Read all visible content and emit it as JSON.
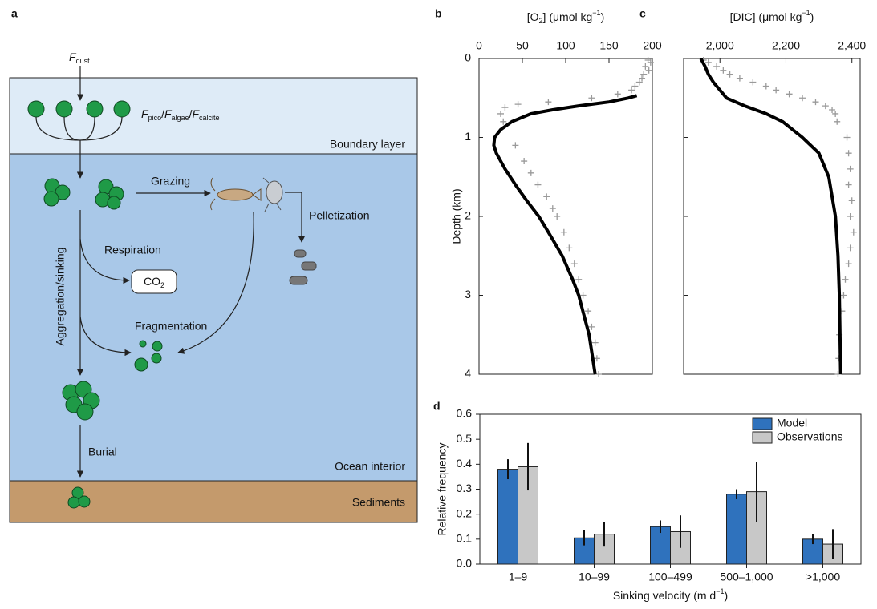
{
  "diagram": {
    "panel_label": "a",
    "dust_flux": [
      "F",
      "dust"
    ],
    "flux_label": [
      "F",
      "pico",
      "/",
      "F",
      "algae",
      "/",
      "F",
      "calcite"
    ],
    "boundary_layer": "Boundary layer",
    "grazing": "Grazing",
    "pelletization": "Pelletization",
    "respiration": "Respiration",
    "co2": [
      "CO",
      "2"
    ],
    "aggregation": "Aggregation/sinking",
    "fragmentation": "Fragmentation",
    "burial": "Burial",
    "ocean_interior": "Ocean interior",
    "sediments": "Sediments"
  },
  "chart_data": [
    {
      "type": "line",
      "panel_label": "b",
      "xlabel": [
        "[O",
        "2",
        "] (μmol kg",
        "−1",
        ")"
      ],
      "ylabel": "Depth (km)",
      "xlim": [
        0,
        200
      ],
      "xticks": [
        0,
        50,
        100,
        150,
        200
      ],
      "ylim": [
        0,
        4
      ],
      "yticks": [
        0,
        1,
        2,
        3,
        4
      ],
      "y_inverted": true,
      "ytick_labels": true,
      "series": [
        {
          "mode": "markers",
          "color": "#9a9a9a",
          "depth": [
            0.02,
            0.05,
            0.1,
            0.15,
            0.2,
            0.25,
            0.3,
            0.35,
            0.4,
            0.45,
            0.5,
            0.55,
            0.58,
            0.62,
            0.7,
            0.8,
            1.1,
            1.3,
            1.45,
            1.6,
            1.75,
            1.9,
            2.0,
            2.2,
            2.4,
            2.6,
            2.8,
            3.0,
            3.2,
            3.4,
            3.6,
            3.8,
            4.0
          ],
          "values": [
            195,
            198,
            192,
            196,
            190,
            188,
            185,
            180,
            176,
            160,
            130,
            80,
            45,
            30,
            25,
            28,
            42,
            52,
            60,
            68,
            78,
            85,
            90,
            98,
            104,
            110,
            115,
            120,
            126,
            130,
            134,
            136,
            138
          ]
        },
        {
          "mode": "line",
          "color": "#000000",
          "depth": [
            0.47,
            0.5,
            0.55,
            0.6,
            0.65,
            0.7,
            0.8,
            0.9,
            1.0,
            1.1,
            1.2,
            1.4,
            1.6,
            1.8,
            2.0,
            2.2,
            2.5,
            2.8,
            3.0,
            3.5,
            4.0
          ],
          "values": [
            182,
            172,
            150,
            115,
            85,
            60,
            38,
            25,
            18,
            17,
            20,
            30,
            42,
            55,
            69,
            80,
            96,
            108,
            115,
            127,
            134
          ]
        }
      ]
    },
    {
      "type": "line",
      "panel_label": "c",
      "xlabel": [
        "[DIC] (μmol kg",
        "−1",
        ")"
      ],
      "xlim": [
        1890,
        2425
      ],
      "xticks": [
        {
          "value": 2000,
          "label": "2,000"
        },
        {
          "value": 2200,
          "label": "2,200"
        },
        {
          "value": 2400,
          "label": "2,400"
        }
      ],
      "ylim": [
        0,
        4
      ],
      "yticks": [
        0,
        1,
        2,
        3,
        4
      ],
      "y_inverted": true,
      "ytick_labels": false,
      "series": [
        {
          "mode": "markers",
          "color": "#9a9a9a",
          "depth": [
            0.02,
            0.05,
            0.1,
            0.15,
            0.2,
            0.25,
            0.3,
            0.35,
            0.4,
            0.45,
            0.5,
            0.55,
            0.6,
            0.65,
            0.7,
            0.8,
            1.0,
            1.2,
            1.4,
            1.6,
            1.8,
            2.0,
            2.2,
            2.4,
            2.6,
            2.8,
            3.0,
            3.2,
            3.5,
            3.8,
            4.0
          ],
          "values": [
            1950,
            1965,
            1990,
            2010,
            2030,
            2060,
            2100,
            2140,
            2170,
            2210,
            2250,
            2290,
            2320,
            2340,
            2350,
            2355,
            2385,
            2390,
            2395,
            2390,
            2400,
            2395,
            2405,
            2395,
            2390,
            2380,
            2375,
            2370,
            2362,
            2360,
            2358
          ]
        },
        {
          "mode": "line",
          "color": "#000000",
          "depth": [
            0,
            0.1,
            0.2,
            0.3,
            0.4,
            0.5,
            0.6,
            0.7,
            0.8,
            1.0,
            1.2,
            1.5,
            2.0,
            2.5,
            3.0,
            4.0
          ],
          "values": [
            1942,
            1955,
            1965,
            1980,
            2000,
            2020,
            2075,
            2140,
            2190,
            2250,
            2300,
            2330,
            2350,
            2358,
            2362,
            2366
          ]
        }
      ]
    },
    {
      "type": "bar",
      "panel_label": "d",
      "xlabel": [
        "Sinking velocity (m d",
        "−1",
        ")"
      ],
      "ylabel": "Relative frequency",
      "categories": [
        "1–9",
        "10–99",
        "100–499",
        "500–1,000",
        ">1,000"
      ],
      "ylim": [
        0,
        0.6
      ],
      "yticks": [
        {
          "value": 0,
          "label": "0.0"
        },
        0.1,
        0.2,
        0.3,
        0.4,
        0.5,
        0.6
      ],
      "legend": "top-right",
      "series": [
        {
          "name": "Model",
          "color": "#2f72bd",
          "values": [
            0.38,
            0.105,
            0.15,
            0.28,
            0.1
          ],
          "errors": [
            0.04,
            0.03,
            0.025,
            0.02,
            0.02
          ]
        },
        {
          "name": "Observations",
          "color": "#c8c8c8",
          "values": [
            0.39,
            0.12,
            0.13,
            0.29,
            0.08
          ],
          "errors": [
            0.095,
            0.05,
            0.065,
            0.12,
            0.06
          ]
        }
      ]
    }
  ]
}
